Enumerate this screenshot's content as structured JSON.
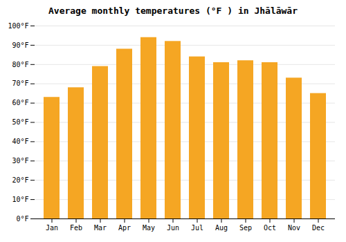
{
  "chart_data": {
    "type": "bar",
    "title": "Average monthly temperatures (°F ) in Jhālāwār",
    "categories": [
      "Jan",
      "Feb",
      "Mar",
      "Apr",
      "May",
      "Jun",
      "Jul",
      "Aug",
      "Sep",
      "Oct",
      "Nov",
      "Dec"
    ],
    "values": [
      63,
      68,
      79,
      88,
      94,
      92,
      84,
      81,
      82,
      81,
      73,
      65
    ],
    "color": "#F5A623",
    "ylim": [
      0,
      100
    ],
    "yticks": [
      {
        "value": 0,
        "label": "0°F"
      },
      {
        "value": 10,
        "label": "10°F"
      },
      {
        "value": 20,
        "label": "20°F"
      },
      {
        "value": 30,
        "label": "30°F"
      },
      {
        "value": 40,
        "label": "40°F"
      },
      {
        "value": 50,
        "label": "50°F"
      },
      {
        "value": 60,
        "label": "60°F"
      },
      {
        "value": 70,
        "label": "70°F"
      },
      {
        "value": 80,
        "label": "80°F"
      },
      {
        "value": 90,
        "label": "90°F"
      },
      {
        "value": 100,
        "label": "100°F"
      }
    ],
    "grid": true
  }
}
